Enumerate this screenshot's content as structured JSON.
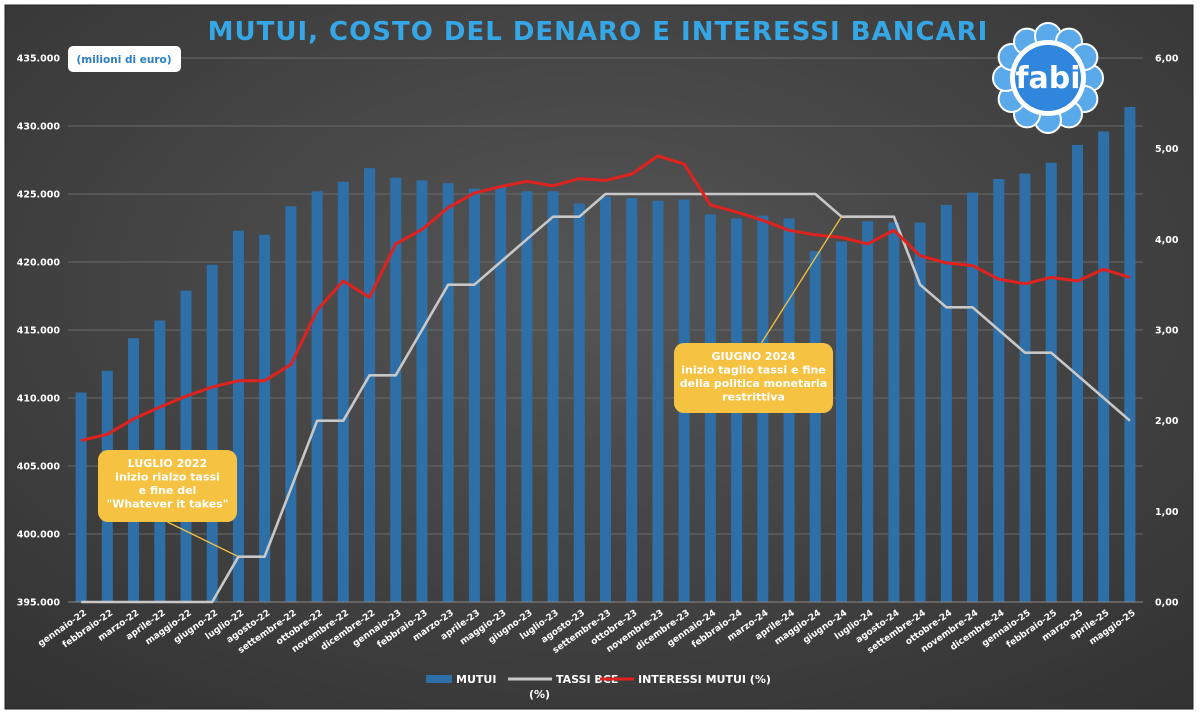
{
  "chart_data": {
    "type": "bar",
    "title": "MUTUI, COSTO DEL DENARO E INTERESSI BANCARI",
    "unit_label": "(milioni di euro)",
    "logo_text": "fabi",
    "categories": [
      "gennaio-22",
      "febbraio-22",
      "marzo-22",
      "aprile-22",
      "maggio-22",
      "giugno-22",
      "luglio-22",
      "agosto-22",
      "settembre-22",
      "ottobre-22",
      "novembre-22",
      "dicembre-22",
      "gennaio-23",
      "febbraio-23",
      "marzo-23",
      "aprile-23",
      "maggio-23",
      "giugno-23",
      "luglio-23",
      "agosto-23",
      "settembre-23",
      "ottobre-23",
      "novembre-23",
      "dicembre-23",
      "gennaio-24",
      "febbraio-24",
      "marzo-24",
      "aprile-24",
      "maggio-24",
      "giugno-24",
      "luglio-24",
      "agosto-24",
      "settembre-24",
      "ottobre-24",
      "novembre-24",
      "dicembre-24",
      "gennaio-25",
      "febbraio-25",
      "marzo-25",
      "aprile-25",
      "maggio-25"
    ],
    "ylim_left": [
      395000,
      435000
    ],
    "ylim_right": [
      0,
      6
    ],
    "left_ticks": [
      "395.000",
      "400.000",
      "405.000",
      "410.000",
      "415.000",
      "420.000",
      "425.000",
      "430.000",
      "435.000"
    ],
    "right_ticks": [
      "0,00",
      "1,00",
      "2,00",
      "3,00",
      "4,00",
      "5,00",
      "6,00"
    ],
    "grid": true,
    "legend_position": "bottom",
    "series": [
      {
        "name": "MUTUI",
        "axis": "left",
        "kind": "bar",
        "color": "#2f6fa8",
        "values": [
          410400,
          412000,
          414400,
          415700,
          417900,
          419800,
          422300,
          422000,
          424100,
          425200,
          425900,
          426900,
          426200,
          426000,
          425800,
          425400,
          425500,
          425200,
          425200,
          424300,
          424800,
          424700,
          424500,
          424600,
          423500,
          423200,
          423400,
          423200,
          420800,
          421500,
          423000,
          422900,
          422900,
          424200,
          425100,
          426100,
          426500,
          427300,
          428600,
          429600,
          431400
        ]
      },
      {
        "name": "TASSI BCE (%)",
        "legend_line1": "TASSI BCE",
        "legend_line2": "(%)",
        "axis": "right",
        "kind": "line",
        "color": "#c8c8c8",
        "values": [
          0,
          0,
          0,
          0,
          0,
          0,
          0.5,
          0.5,
          1.25,
          2.0,
          2.0,
          2.5,
          2.5,
          3.0,
          3.5,
          3.5,
          3.75,
          4.0,
          4.25,
          4.25,
          4.5,
          4.5,
          4.5,
          4.5,
          4.5,
          4.5,
          4.5,
          4.5,
          4.5,
          4.25,
          4.25,
          4.25,
          3.5,
          3.25,
          3.25,
          3.0,
          2.75,
          2.75,
          2.5,
          2.25,
          2.0
        ]
      },
      {
        "name": "INTERESSI MUTUI (%)",
        "axis": "right",
        "kind": "line",
        "color": "#e0221e",
        "values": [
          1.78,
          1.85,
          2.02,
          2.15,
          2.27,
          2.37,
          2.44,
          2.44,
          2.62,
          3.22,
          3.54,
          3.36,
          3.95,
          4.11,
          4.35,
          4.51,
          4.58,
          4.64,
          4.59,
          4.67,
          4.65,
          4.72,
          4.92,
          4.83,
          4.38,
          4.3,
          4.21,
          4.1,
          4.05,
          4.02,
          3.95,
          4.1,
          3.82,
          3.74,
          3.71,
          3.56,
          3.51,
          3.58,
          3.54,
          3.67,
          3.58
        ]
      }
    ],
    "annotations": [
      {
        "lines": [
          "LUGLIO 2022",
          "inizio rialzo tassi",
          "e fine del",
          "\"Whatever it takes\""
        ],
        "category_index": 6,
        "series": "TASSI BCE (%)"
      },
      {
        "lines": [
          "GIUGNO 2024",
          "inizio taglio tassi e fine",
          "della politica monetaria",
          "restrittiva"
        ],
        "category_index": 29,
        "series": "TASSI BCE (%)"
      }
    ]
  }
}
